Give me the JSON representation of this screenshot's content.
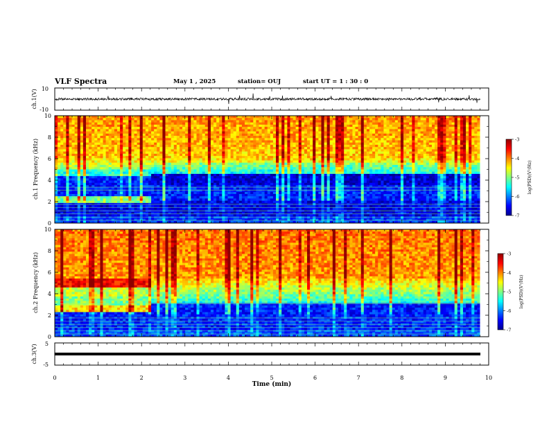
{
  "header": {
    "title": "VLF Spectra",
    "date": "May 1  , 2025",
    "station": "station= OUJ",
    "start": "start  UT =   1 : 30 : 0"
  },
  "colors": {
    "colormap": [
      "#00008f",
      "#0000ff",
      "#0080ff",
      "#00ffff",
      "#80ff80",
      "#ffff00",
      "#ff8000",
      "#ff0000",
      "#8f0000"
    ],
    "trace": "#000000"
  },
  "chart_data": [
    {
      "type": "line",
      "name": "ch1-waveform",
      "ylabel": "ch.1(V)",
      "ylim": [
        -10,
        10
      ],
      "yticks": [
        "10",
        "-10"
      ],
      "xlim": [
        0,
        10
      ],
      "baseline": 0,
      "amplitude": 1.5,
      "trace_end_min": 9.8
    },
    {
      "type": "heatmap",
      "name": "ch1-spectrogram",
      "ylabel": "ch.1\nFrequency (kHz)",
      "ylim": [
        0,
        10
      ],
      "yticks": [
        "0",
        "2",
        "4",
        "6",
        "8",
        "10"
      ],
      "xlim": [
        0,
        10
      ],
      "data_end_min": 9.8,
      "colorbar": {
        "label": "log(PSD)(V²/Hz)",
        "range": [
          -7,
          -3
        ],
        "ticks": [
          "-3",
          "-4",
          "-5",
          "-6",
          "-7"
        ]
      },
      "bands": [
        {
          "name": "quiet-band",
          "kHz": [
            2.2,
            4.4
          ],
          "level": -6.5
        },
        {
          "name": "early-band",
          "t_min": [
            0,
            2.25
          ],
          "kHz": [
            1.8,
            2.6
          ],
          "level": -4.9
        },
        {
          "name": "background",
          "kHz": [
            5.5,
            10
          ],
          "level": -4.2
        }
      ]
    },
    {
      "type": "heatmap",
      "name": "ch2-spectrogram",
      "ylabel": "ch.2\nFrequency (kHz)",
      "ylim": [
        0,
        10
      ],
      "yticks": [
        "0",
        "2",
        "4",
        "6",
        "8",
        "10"
      ],
      "xlim": [
        0,
        10
      ],
      "data_end_min": 9.8,
      "colorbar": {
        "label": "log(PSD)(V²/Hz)",
        "range": [
          -7,
          -3
        ],
        "ticks": [
          "-3",
          "-4",
          "-5",
          "-6",
          "-7"
        ]
      },
      "bands": [
        {
          "name": "early-line-5k",
          "t_min": [
            0,
            2.25
          ],
          "kHz": [
            4.7,
            5.3
          ],
          "level": -3.6
        },
        {
          "name": "early-line-2.5k",
          "t_min": [
            0,
            2.25
          ],
          "kHz": [
            2.2,
            2.8
          ],
          "level": -4.5
        }
      ]
    },
    {
      "type": "line",
      "name": "ch3-waveform",
      "ylabel": "ch.3(V)",
      "ylim": [
        -5,
        5
      ],
      "yticks": [
        "5",
        "-5"
      ],
      "xlim": [
        0,
        10
      ],
      "baseline": -1.5,
      "trace_end_min": 9.8
    }
  ],
  "xaxis": {
    "label": "Time (min)",
    "ticks": [
      "0",
      "1",
      "2",
      "3",
      "4",
      "5",
      "6",
      "7",
      "8",
      "9",
      "10"
    ]
  }
}
